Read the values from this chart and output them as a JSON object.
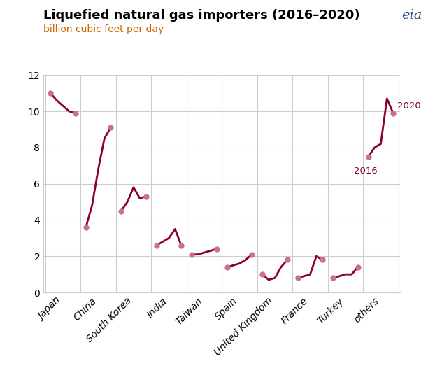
{
  "title": "Liquefied natural gas importers (2016–2020)",
  "subtitle": "billion cubic feet per day",
  "line_color": "#8B0030",
  "marker_color": "#C8728A",
  "background_color": "#FFFFFF",
  "grid_color": "#CCCCCC",
  "subtitle_color": "#CC6600",
  "ylim": [
    0,
    12
  ],
  "yticks": [
    0,
    2,
    4,
    6,
    8,
    10,
    12
  ],
  "regions": [
    "Japan",
    "China",
    "South Korea",
    "India",
    "Taiwan",
    "Spain",
    "United Kingdom",
    "France",
    "Turkey",
    "others"
  ],
  "data": {
    "Japan": {
      "2016": 11.0,
      "2017": 10.6,
      "2018": 10.3,
      "2019": 10.0,
      "2020": 9.9
    },
    "China": {
      "2016": 3.6,
      "2017": 4.8,
      "2018": 6.8,
      "2019": 8.5,
      "2020": 9.1
    },
    "South Korea": {
      "2016": 4.5,
      "2017": 5.0,
      "2018": 5.8,
      "2019": 5.2,
      "2020": 5.3
    },
    "India": {
      "2016": 2.6,
      "2017": 2.8,
      "2018": 3.0,
      "2019": 3.5,
      "2020": 2.6
    },
    "Taiwan": {
      "2016": 2.1,
      "2017": 2.1,
      "2018": 2.2,
      "2019": 2.3,
      "2020": 2.4
    },
    "Spain": {
      "2016": 1.4,
      "2017": 1.5,
      "2018": 1.6,
      "2019": 1.8,
      "2020": 2.1
    },
    "United Kingdom": {
      "2016": 1.0,
      "2017": 0.7,
      "2018": 0.8,
      "2019": 1.4,
      "2020": 1.8
    },
    "France": {
      "2016": 0.8,
      "2017": 0.9,
      "2018": 1.0,
      "2019": 2.0,
      "2020": 1.8
    },
    "Turkey": {
      "2016": 0.8,
      "2017": 0.9,
      "2018": 1.0,
      "2019": 1.0,
      "2020": 1.4
    },
    "others": {
      "2016": 7.5,
      "2017": 8.0,
      "2018": 8.2,
      "2019": 10.7,
      "2020": 9.9
    }
  }
}
